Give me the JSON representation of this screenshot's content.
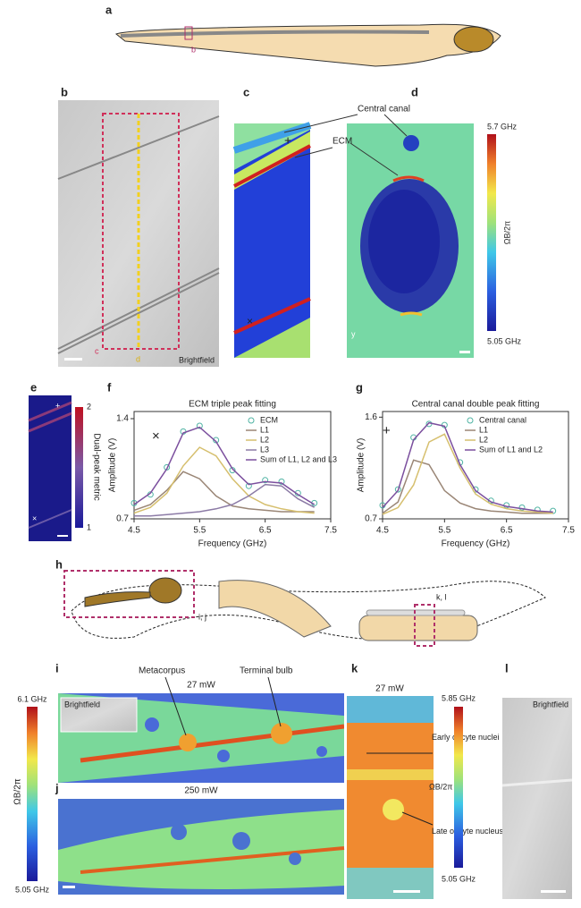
{
  "panels": {
    "a": {
      "label": "a",
      "sub": "b"
    },
    "b": {
      "label": "b",
      "caption": "Brightfield",
      "mark_c": "c",
      "mark_d": "d"
    },
    "c": {
      "label": "c"
    },
    "d": {
      "label": "d",
      "central_canal": "Central canal",
      "ecm": "ECM",
      "cbar_max": "5.7 GHz",
      "cbar_min": "5.05 GHz",
      "cbar_label": "ΩB/2π",
      "axis": "y"
    },
    "e": {
      "label": "e",
      "cbar_max": "2",
      "cbar_min": "1",
      "cbar_label": "Dual-peak metric"
    },
    "h": {
      "label": "h",
      "box1": "i, j",
      "box2": "k, l"
    },
    "i": {
      "label": "i",
      "inset": "Brightfield",
      "power": "27 mW",
      "metacorpus": "Metacorpus",
      "terminal_bulb": "Terminal bulb",
      "cbar_max": "6.1 GHz",
      "cbar_min": "5.05 GHz",
      "cbar_label": "ΩB/2π"
    },
    "j": {
      "label": "j",
      "power": "250 mW"
    },
    "k": {
      "label": "k",
      "power": "27 mW",
      "cbar_max": "5.85 GHz",
      "cbar_min": "5.05 GHz",
      "cbar_label": "ΩB/2π",
      "early": "Early oocyte nuclei",
      "late": "Late oocyte nucleus"
    },
    "l": {
      "label": "l",
      "caption": "Brightfield"
    }
  },
  "chart_data": [
    {
      "type": "line",
      "panel": "f",
      "title": "ECM triple peak fitting",
      "xlabel": "Frequency (GHz)",
      "ylabel": "Amplitude (V)",
      "symbol": "×",
      "x": [
        4.5,
        4.75,
        5.0,
        5.25,
        5.5,
        5.75,
        6.0,
        6.25,
        6.5,
        6.75,
        7.0,
        7.25
      ],
      "xlim": [
        4.5,
        7.5
      ],
      "xticks": [
        4.5,
        5.5,
        6.5,
        7.5
      ],
      "ylim": [
        0.7,
        1.45
      ],
      "yticks": [
        0.7,
        1.4
      ],
      "series": [
        {
          "name": "ECM",
          "color": "#4fb3a3",
          "marker": "circle",
          "values": [
            0.81,
            0.87,
            1.06,
            1.31,
            1.35,
            1.25,
            1.04,
            0.93,
            0.97,
            0.96,
            0.88,
            0.81
          ]
        },
        {
          "name": "L1",
          "color": "#9a8676",
          "values": [
            0.76,
            0.8,
            0.9,
            1.03,
            0.98,
            0.86,
            0.79,
            0.77,
            0.76,
            0.75,
            0.75,
            0.75
          ]
        },
        {
          "name": "L2",
          "color": "#d6bf6e",
          "values": [
            0.74,
            0.78,
            0.88,
            1.07,
            1.2,
            1.14,
            0.98,
            0.86,
            0.8,
            0.77,
            0.75,
            0.74
          ]
        },
        {
          "name": "L3",
          "color": "#8c7ba6",
          "values": [
            0.72,
            0.72,
            0.73,
            0.74,
            0.75,
            0.77,
            0.8,
            0.86,
            0.94,
            0.93,
            0.84,
            0.78
          ]
        },
        {
          "name": "Sum of L1, L2 and L3",
          "color": "#7b4f9e",
          "values": [
            0.8,
            0.88,
            1.05,
            1.3,
            1.34,
            1.24,
            1.05,
            0.94,
            0.96,
            0.95,
            0.87,
            0.8
          ]
        }
      ]
    },
    {
      "type": "line",
      "panel": "g",
      "title": "Central canal double peak fitting",
      "xlabel": "Frequency (GHz)",
      "ylabel": "Amplitude (V)",
      "symbol": "+",
      "x": [
        4.5,
        4.75,
        5.0,
        5.25,
        5.5,
        5.75,
        6.0,
        6.25,
        6.5,
        6.75,
        7.0,
        7.25
      ],
      "xlim": [
        4.5,
        7.5
      ],
      "xticks": [
        4.5,
        5.5,
        6.5,
        7.5
      ],
      "ylim": [
        0.7,
        1.65
      ],
      "yticks": [
        0.7,
        1.6
      ],
      "series": [
        {
          "name": "Central canal",
          "color": "#4fb3a3",
          "marker": "circle",
          "values": [
            0.82,
            0.96,
            1.42,
            1.54,
            1.53,
            1.2,
            0.96,
            0.86,
            0.82,
            0.8,
            0.78,
            0.77
          ]
        },
        {
          "name": "L1",
          "color": "#9a8676",
          "values": [
            0.75,
            0.85,
            1.22,
            1.18,
            0.95,
            0.84,
            0.79,
            0.77,
            0.76,
            0.75,
            0.75,
            0.75
          ]
        },
        {
          "name": "L2",
          "color": "#d6bf6e",
          "values": [
            0.74,
            0.8,
            1.0,
            1.38,
            1.45,
            1.15,
            0.92,
            0.83,
            0.79,
            0.77,
            0.76,
            0.75
          ]
        },
        {
          "name": "Sum of L1 and L2",
          "color": "#7b4f9e",
          "values": [
            0.8,
            0.95,
            1.4,
            1.55,
            1.52,
            1.18,
            0.95,
            0.85,
            0.81,
            0.79,
            0.77,
            0.76
          ]
        }
      ]
    }
  ]
}
